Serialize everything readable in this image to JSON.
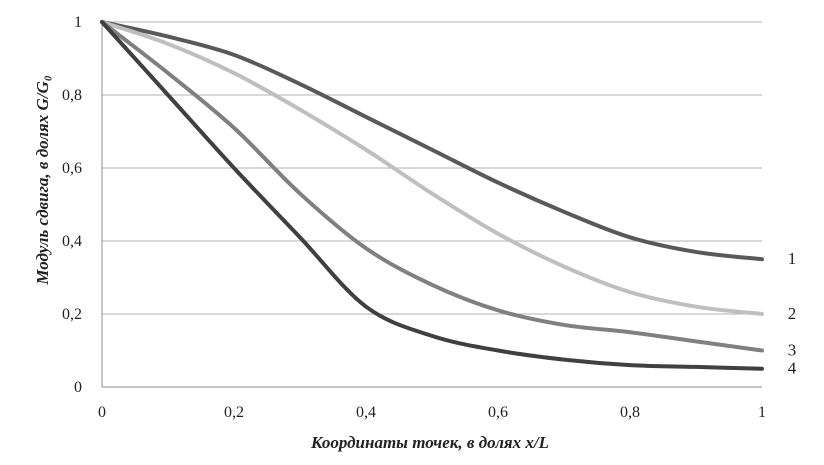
{
  "chart_data": {
    "type": "line",
    "xlabel": "Координаты точек, в долях x/L",
    "ylabel": "Модуль сдвига, в долях G/G₀",
    "xlim": [
      0,
      1
    ],
    "ylim": [
      0,
      1
    ],
    "xticks": [
      "0",
      "0,2",
      "0,4",
      "0,6",
      "0,8",
      "1"
    ],
    "yticks": [
      "0",
      "0,2",
      "0,4",
      "0,6",
      "0,8",
      "1"
    ],
    "grid": "horizontal",
    "legend": "series labels at right end of lines",
    "series": [
      {
        "name": "1",
        "color": "#595959",
        "x": [
          0,
          0.1,
          0.2,
          0.3,
          0.4,
          0.5,
          0.6,
          0.7,
          0.8,
          0.9,
          1.0
        ],
        "y": [
          1.0,
          0.96,
          0.91,
          0.83,
          0.74,
          0.65,
          0.56,
          0.48,
          0.41,
          0.37,
          0.35
        ]
      },
      {
        "name": "2",
        "color": "#bfbfbf",
        "x": [
          0,
          0.1,
          0.2,
          0.3,
          0.4,
          0.5,
          0.6,
          0.7,
          0.8,
          0.9,
          1.0
        ],
        "y": [
          1.0,
          0.94,
          0.86,
          0.76,
          0.65,
          0.53,
          0.42,
          0.33,
          0.26,
          0.22,
          0.2
        ]
      },
      {
        "name": "3",
        "color": "#808080",
        "x": [
          0,
          0.1,
          0.2,
          0.3,
          0.4,
          0.5,
          0.6,
          0.7,
          0.8,
          0.9,
          1.0
        ],
        "y": [
          1.0,
          0.86,
          0.71,
          0.53,
          0.38,
          0.28,
          0.21,
          0.17,
          0.15,
          0.125,
          0.1
        ]
      },
      {
        "name": "4",
        "color": "#404040",
        "x": [
          0,
          0.1,
          0.2,
          0.3,
          0.4,
          0.5,
          0.6,
          0.7,
          0.8,
          0.9,
          1.0
        ],
        "y": [
          1.0,
          0.8,
          0.6,
          0.41,
          0.22,
          0.14,
          0.1,
          0.075,
          0.06,
          0.055,
          0.05
        ]
      }
    ]
  }
}
